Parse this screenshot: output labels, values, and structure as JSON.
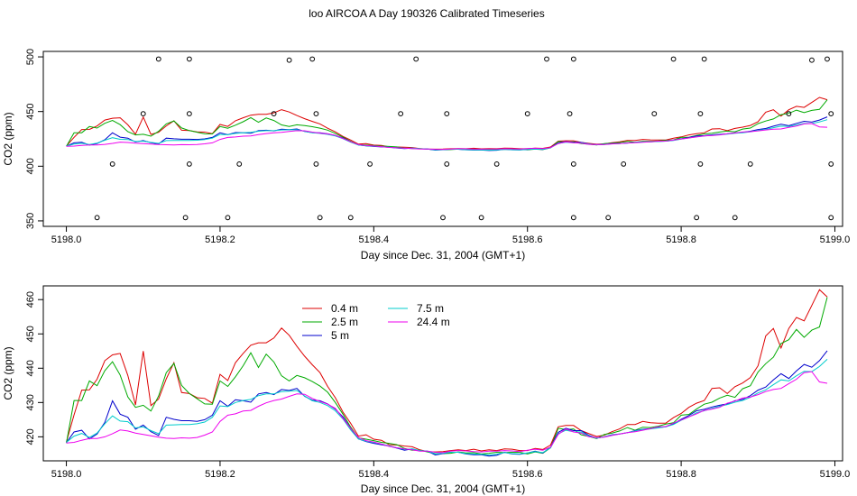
{
  "title": "loo AIRCOA A  Day 190326  Calibrated Timeseries",
  "chart_data": [
    {
      "type": "line",
      "xlabel": "Day since Dec. 31, 2004 (GMT+1)",
      "ylabel": "CO2 (ppm)",
      "xlim": [
        5197.97,
        5199.01
      ],
      "ylim": [
        345,
        505
      ],
      "xticks": [
        5198.0,
        5198.2,
        5198.4,
        5198.6,
        5198.8,
        5199.0
      ],
      "xtick_labels": [
        "5198.0",
        "5198.2",
        "5198.4",
        "5198.6",
        "5198.8",
        "5199.0"
      ],
      "yticks": [
        350,
        400,
        450,
        500
      ],
      "ytick_labels": [
        "350",
        "400",
        "450",
        "500"
      ],
      "colors": [
        "#dd0000",
        "#00aa00",
        "#0000cc",
        "#00cccc",
        "#ee00ee"
      ],
      "x": [
        5198.0,
        5198.01,
        5198.02,
        5198.03,
        5198.04,
        5198.05,
        5198.06,
        5198.07,
        5198.08,
        5198.09,
        5198.1,
        5198.11,
        5198.12,
        5198.13,
        5198.14,
        5198.15,
        5198.16,
        5198.17,
        5198.18,
        5198.19,
        5198.2,
        5198.21,
        5198.22,
        5198.23,
        5198.24,
        5198.25,
        5198.26,
        5198.27,
        5198.28,
        5198.29,
        5198.3,
        5198.31,
        5198.32,
        5198.33,
        5198.34,
        5198.35,
        5198.36,
        5198.37,
        5198.38,
        5198.39,
        5198.4,
        5198.41,
        5198.42,
        5198.43,
        5198.44,
        5198.45,
        5198.46,
        5198.47,
        5198.48,
        5198.49,
        5198.5,
        5198.51,
        5198.52,
        5198.53,
        5198.54,
        5198.55,
        5198.56,
        5198.57,
        5198.58,
        5198.59,
        5198.6,
        5198.61,
        5198.62,
        5198.63,
        5198.64,
        5198.65,
        5198.66,
        5198.67,
        5198.68,
        5198.69,
        5198.7,
        5198.71,
        5198.72,
        5198.73,
        5198.74,
        5198.75,
        5198.76,
        5198.77,
        5198.78,
        5198.79,
        5198.8,
        5198.81,
        5198.82,
        5198.83,
        5198.84,
        5198.85,
        5198.86,
        5198.87,
        5198.88,
        5198.89,
        5198.9,
        5198.91,
        5198.92,
        5198.93,
        5198.94,
        5198.95,
        5198.96,
        5198.97,
        5198.98,
        5198.99
      ],
      "series": [
        {
          "values": [
            418.5,
            426.4,
            433.6,
            433.7,
            436.8,
            442.2,
            443.9,
            444.3,
            437.9,
            429.3,
            445.0,
            429.1,
            431.0,
            436.9,
            441.6,
            432.9,
            432.6,
            431.4,
            431.2,
            429.8,
            438.2,
            436.4,
            441.6,
            444.3,
            446.7,
            447.4,
            447.4,
            448.8,
            451.7,
            449.6,
            446.4,
            443.5,
            441.0,
            438.7,
            434.7,
            431.4,
            427.2,
            423.9,
            420.2,
            420.6,
            419.3,
            419.0,
            417.7,
            417.6,
            417.3,
            417.1,
            416.2,
            415.7,
            415.6,
            415.7,
            416.0,
            416.2,
            416.0,
            416.4,
            415.9,
            416.2,
            416.0,
            416.5,
            416.4,
            416.0,
            416.0,
            416.6,
            416.3,
            417.6,
            422.9,
            423.3,
            423.3,
            421.8,
            420.9,
            420.1,
            420.5,
            421.5,
            422.3,
            423.6,
            423.6,
            424.5,
            424.1,
            424.0,
            424.0,
            425.6,
            426.8,
            428.6,
            429.8,
            430.6,
            434.1,
            434.3,
            432.6,
            434.6,
            435.7,
            437.3,
            440.7,
            449.4,
            451.6,
            445.9,
            451.6,
            454.8,
            453.8,
            458.3,
            462.9,
            460.8
          ]
        },
        {
          "values": [
            418.2,
            430.6,
            430.6,
            436.3,
            434.9,
            439.3,
            441.9,
            438.0,
            431.6,
            428.6,
            429.2,
            427.5,
            431.9,
            438.7,
            441.4,
            435.0,
            432.6,
            431.1,
            429.6,
            429.5,
            436.3,
            434.7,
            437.5,
            440.7,
            444.5,
            440.2,
            444.1,
            441.8,
            437.8,
            436.3,
            437.9,
            437.2,
            436.1,
            434.8,
            433.0,
            430.0,
            426.6,
            422.8,
            419.7,
            419.3,
            418.9,
            418.4,
            418.1,
            417.7,
            416.6,
            416.1,
            416.1,
            415.6,
            415.1,
            415.1,
            415.2,
            415.6,
            415.3,
            415.4,
            415.0,
            415.2,
            415.5,
            415.4,
            415.5,
            415.5,
            415.0,
            415.6,
            415.2,
            416.8,
            422.5,
            422.1,
            422.3,
            420.6,
            420.1,
            419.5,
            420.7,
            421.1,
            421.7,
            422.7,
            421.9,
            422.8,
            422.7,
            423.1,
            423.7,
            424.1,
            426.3,
            426.5,
            428.1,
            429.5,
            430.1,
            431.3,
            432.1,
            431.5,
            434.0,
            434.9,
            438.9,
            441.3,
            443.2,
            447.2,
            448.3,
            451.3,
            449.0,
            451.1,
            452.0,
            460.7
          ]
        },
        {
          "values": [
            418.3,
            421.4,
            421.9,
            419.4,
            420.8,
            424.2,
            430.5,
            426.6,
            425.7,
            422.2,
            423.4,
            421.5,
            420.4,
            425.7,
            425.1,
            424.7,
            424.7,
            424.5,
            425.0,
            426.3,
            430.5,
            428.9,
            430.8,
            430.5,
            430.1,
            432.5,
            432.9,
            432.3,
            433.8,
            433.5,
            434.1,
            431.8,
            430.7,
            430.5,
            429.6,
            428.1,
            425.8,
            422.4,
            419.4,
            418.6,
            418.1,
            417.7,
            417.3,
            416.7,
            416.1,
            416.5,
            415.9,
            415.8,
            414.7,
            415.1,
            415.5,
            415.5,
            415.0,
            414.8,
            414.8,
            414.4,
            414.6,
            415.5,
            415.0,
            414.9,
            415.3,
            415.8,
            415.3,
            417.0,
            421.3,
            422.5,
            421.8,
            421.8,
            420.4,
            419.6,
            420.0,
            420.6,
            420.8,
            421.2,
            421.8,
            422.2,
            422.4,
            422.7,
            422.9,
            423.8,
            425.1,
            426.2,
            427.6,
            428.0,
            428.7,
            429.2,
            429.6,
            430.5,
            430.9,
            432.0,
            433.6,
            434.5,
            436.6,
            438.4,
            437.0,
            439.2,
            441.1,
            440.3,
            442.2,
            445.1
          ]
        },
        {
          "values": [
            418.4,
            420.2,
            421.0,
            419.8,
            421.1,
            423.8,
            426.1,
            424.6,
            424.4,
            422.6,
            422.9,
            421.8,
            420.9,
            423.4,
            423.5,
            423.6,
            423.6,
            423.8,
            424.3,
            425.7,
            429.0,
            428.8,
            430.0,
            430.6,
            430.9,
            432.0,
            432.5,
            432.5,
            433.2,
            433.3,
            433.5,
            431.9,
            430.5,
            430.0,
            429.1,
            427.6,
            425.2,
            422.0,
            419.4,
            418.7,
            418.3,
            417.9,
            417.4,
            416.8,
            416.3,
            416.5,
            416.0,
            415.8,
            415.0,
            415.2,
            415.5,
            415.5,
            415.1,
            415.0,
            414.9,
            414.7,
            414.9,
            415.4,
            415.1,
            415.0,
            415.3,
            415.7,
            415.4,
            416.8,
            420.9,
            421.9,
            421.5,
            421.4,
            420.2,
            419.6,
            420.0,
            420.5,
            420.8,
            421.2,
            421.7,
            422.1,
            422.3,
            422.6,
            422.9,
            423.6,
            424.8,
            425.8,
            427.0,
            427.6,
            428.3,
            428.9,
            429.4,
            430.1,
            430.6,
            431.5,
            432.8,
            433.7,
            435.2,
            436.6,
            436.3,
            437.8,
            439.1,
            439.0,
            440.5,
            442.6
          ]
        },
        {
          "values": [
            418.2,
            418.4,
            419.0,
            419.5,
            419.5,
            420.0,
            420.9,
            422.0,
            421.7,
            421.1,
            420.7,
            420.3,
            419.9,
            419.6,
            419.5,
            419.7,
            419.6,
            419.8,
            420.5,
            421.4,
            424.5,
            426.3,
            426.7,
            427.5,
            427.7,
            428.9,
            429.9,
            430.6,
            431.0,
            431.8,
            432.5,
            432.4,
            431.2,
            430.3,
            429.5,
            428.3,
            425.4,
            422.4,
            419.8,
            418.9,
            418.5,
            417.9,
            417.2,
            416.8,
            416.5,
            416.2,
            415.8,
            415.8,
            415.5,
            415.4,
            415.8,
            416.0,
            415.9,
            415.7,
            415.6,
            415.8,
            415.8,
            416.0,
            415.9,
            415.7,
            416.1,
            416.4,
            416.1,
            417.0,
            420.7,
            422.3,
            421.4,
            421.1,
            420.0,
            419.8,
            419.9,
            420.4,
            420.8,
            421.2,
            421.5,
            421.9,
            422.4,
            422.9,
            423.0,
            424.0,
            424.9,
            425.8,
            426.7,
            427.7,
            428.1,
            428.6,
            429.8,
            430.4,
            431.3,
            431.6,
            432.3,
            433.2,
            433.8,
            434.1,
            435.5,
            436.8,
            438.7,
            439.0,
            436.0,
            435.6
          ]
        }
      ],
      "outliers": {
        "x": [
          5198.04,
          5198.06,
          5198.1,
          5198.12,
          5198.155,
          5198.16,
          5198.16,
          5198.16,
          5198.21,
          5198.225,
          5198.27,
          5198.29,
          5198.32,
          5198.325,
          5198.325,
          5198.33,
          5198.37,
          5198.395,
          5198.435,
          5198.455,
          5198.49,
          5198.495,
          5198.495,
          5198.54,
          5198.56,
          5198.6,
          5198.625,
          5198.655,
          5198.66,
          5198.66,
          5198.66,
          5198.705,
          5198.725,
          5198.765,
          5198.79,
          5198.82,
          5198.825,
          5198.825,
          5198.83,
          5198.87,
          5198.89,
          5198.94,
          5198.97,
          5198.99,
          5198.995,
          5198.995,
          5198.995
        ],
        "y": [
          353,
          402,
          448,
          498,
          353,
          448,
          402,
          498,
          353,
          402,
          448,
          497,
          498,
          448,
          402,
          353,
          353,
          402,
          448,
          498,
          353,
          402,
          448,
          353,
          402,
          448,
          498,
          448,
          498,
          402,
          353,
          353,
          402,
          448,
          498,
          353,
          402,
          448,
          498,
          353,
          402,
          448,
          497,
          498,
          448,
          402,
          353
        ]
      }
    },
    {
      "type": "line",
      "xlabel": "Day since Dec. 31, 2004 (GMT+1)",
      "ylabel": "CO2 (ppm)",
      "xlim": [
        5197.97,
        5199.01
      ],
      "ylim": [
        413,
        464
      ],
      "xticks": [
        5198.0,
        5198.2,
        5198.4,
        5198.6,
        5198.8,
        5199.0
      ],
      "xtick_labels": [
        "5198.0",
        "5198.2",
        "5198.4",
        "5198.6",
        "5198.8",
        "5199.0"
      ],
      "yticks": [
        420,
        430,
        440,
        450,
        460
      ],
      "ytick_labels": [
        "420",
        "430",
        "440",
        "450",
        "460"
      ],
      "legend": {
        "placement": "top-center",
        "entries": [
          {
            "label": "0.4 m",
            "color": "#dd0000"
          },
          {
            "label": "2.5 m",
            "color": "#00aa00"
          },
          {
            "label": "5 m",
            "color": "#0000cc"
          },
          {
            "label": "7.5 m",
            "color": "#00cccc"
          },
          {
            "label": "24.4 m",
            "color": "#ee00ee"
          }
        ]
      }
    }
  ]
}
